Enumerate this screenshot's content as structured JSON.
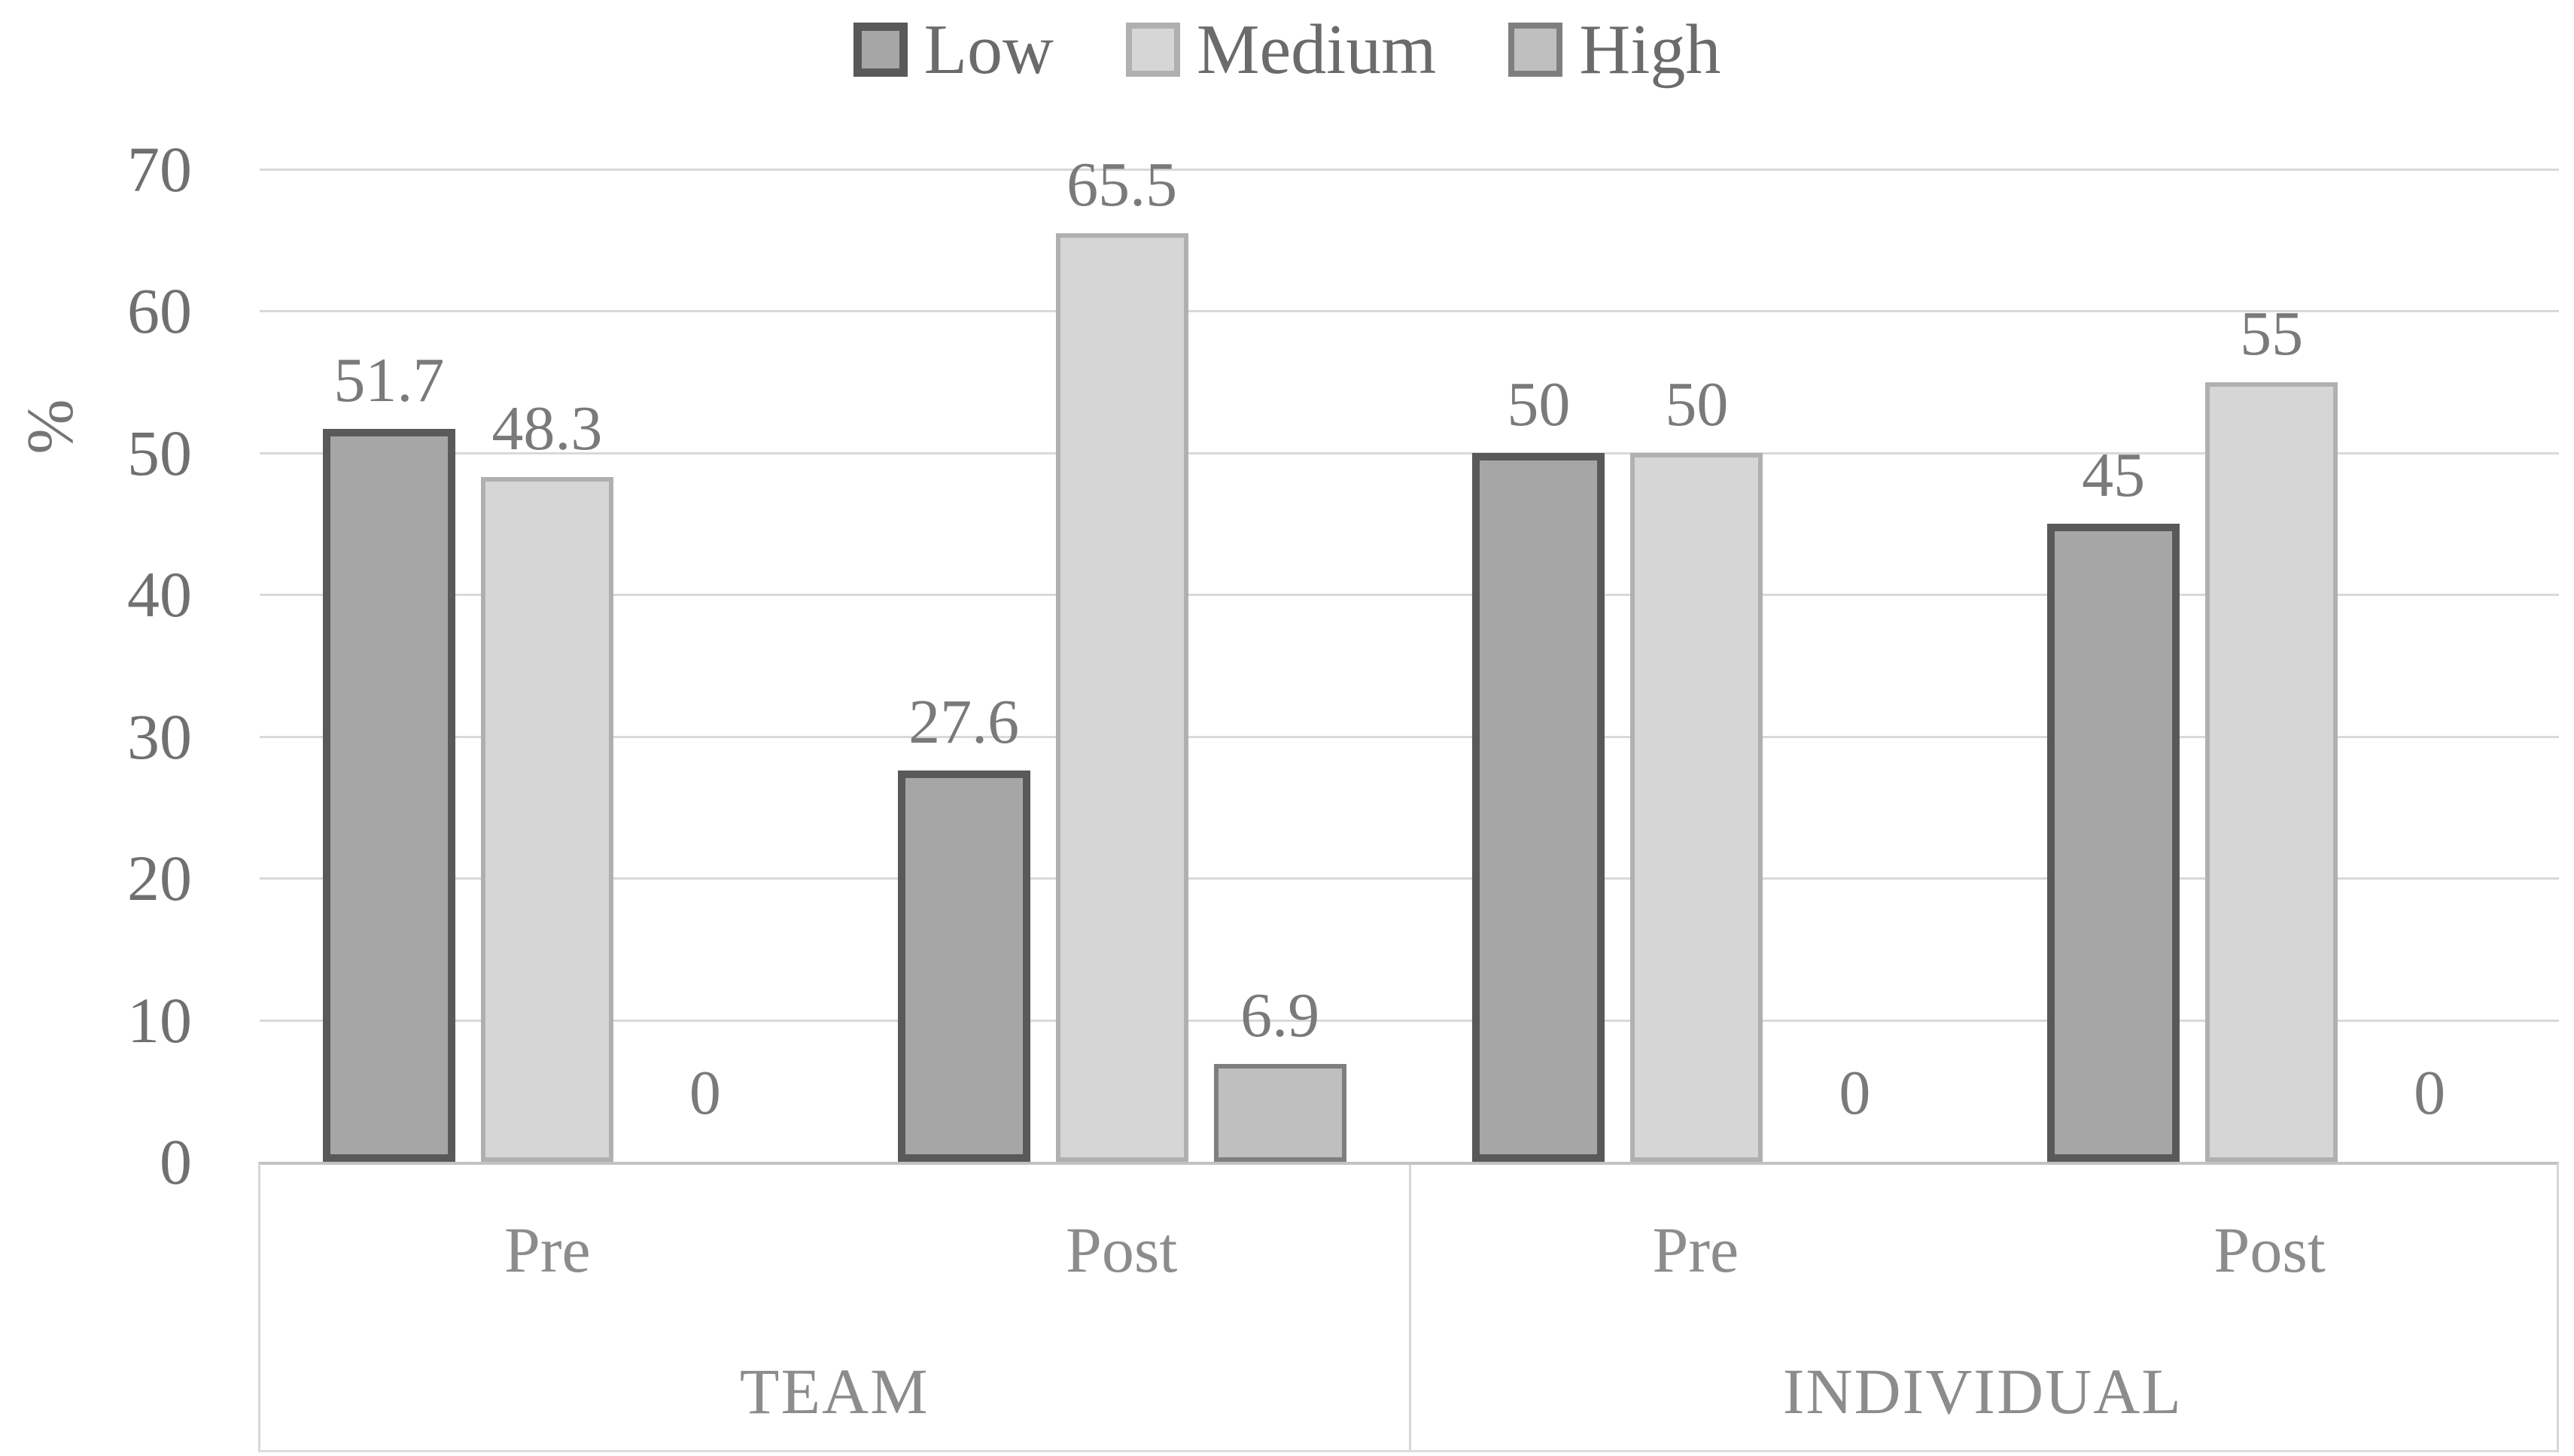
{
  "chart_data": {
    "type": "bar",
    "title": "",
    "ylabel": "%",
    "ylim": [
      0,
      70
    ],
    "yticks": [
      0,
      10,
      20,
      30,
      40,
      50,
      60,
      70
    ],
    "grid": true,
    "legend_position": "top-center",
    "group_labels": [
      "TEAM",
      "INDIVIDUAL"
    ],
    "categories": [
      {
        "group": "TEAM",
        "label": "Pre"
      },
      {
        "group": "TEAM",
        "label": "Post"
      },
      {
        "group": "INDIVIDUAL",
        "label": "Pre"
      },
      {
        "group": "INDIVIDUAL",
        "label": "Post"
      }
    ],
    "series": [
      {
        "name": "Low",
        "values": [
          51.7,
          27.6,
          50,
          45
        ],
        "labels": [
          "51.7",
          "27.6",
          "50",
          "45"
        ],
        "fill": "#a6a6a6",
        "border": "#595959"
      },
      {
        "name": "Medium",
        "values": [
          48.3,
          65.5,
          50,
          55
        ],
        "labels": [
          "48.3",
          "65.5",
          "50",
          "55"
        ],
        "fill": "#d6d6d6",
        "border": "#b0b0b0"
      },
      {
        "name": "High",
        "values": [
          0,
          6.9,
          0,
          0
        ],
        "labels": [
          "0",
          "6.9",
          "0",
          "0"
        ],
        "fill": "#bfbfbf",
        "border": "#7f7f7f"
      }
    ]
  },
  "colors": {
    "background": "#ffffff",
    "gridline": "#d9d9d9",
    "axis_line": "#c2c2c2",
    "category_box_line": "#d6d6d6",
    "tick_text": "#707070",
    "data_label_text": "#7a7a7a",
    "category_text": "#8c8c8c",
    "legend_text": "#6b6b6b"
  }
}
